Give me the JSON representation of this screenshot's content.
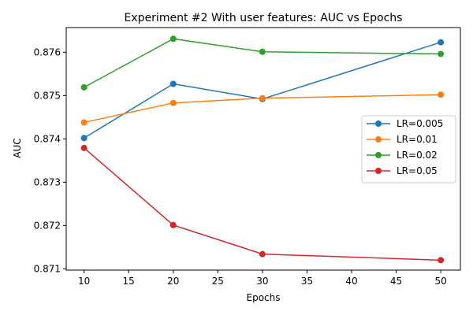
{
  "chart_data": {
    "type": "line",
    "title": "Experiment #2 With user features: AUC vs Epochs",
    "xlabel": "Epochs",
    "ylabel": "AUC",
    "xlim": [
      8,
      52.2
    ],
    "ylim": [
      0.87097,
      0.87657
    ],
    "xticks": [
      10,
      15,
      20,
      25,
      30,
      35,
      40,
      45,
      50
    ],
    "yticks": [
      0.871,
      0.872,
      0.873,
      0.874,
      0.875,
      0.876
    ],
    "x": [
      10,
      20,
      30,
      50
    ],
    "grid": false,
    "legend_position": "center-right",
    "series": [
      {
        "name": "LR=0.005",
        "color": "#1f77b4",
        "values": [
          0.87402,
          0.87527,
          0.87492,
          0.87623
        ]
      },
      {
        "name": "LR=0.01",
        "color": "#ff7f0e",
        "values": [
          0.87438,
          0.87483,
          0.87494,
          0.87502
        ]
      },
      {
        "name": "LR=0.02",
        "color": "#2ca02c",
        "values": [
          0.87519,
          0.87631,
          0.87601,
          0.87596
        ]
      },
      {
        "name": "LR=0.05",
        "color": "#d62728",
        "values": [
          0.87379,
          0.87201,
          0.87134,
          0.8712
        ]
      }
    ]
  }
}
